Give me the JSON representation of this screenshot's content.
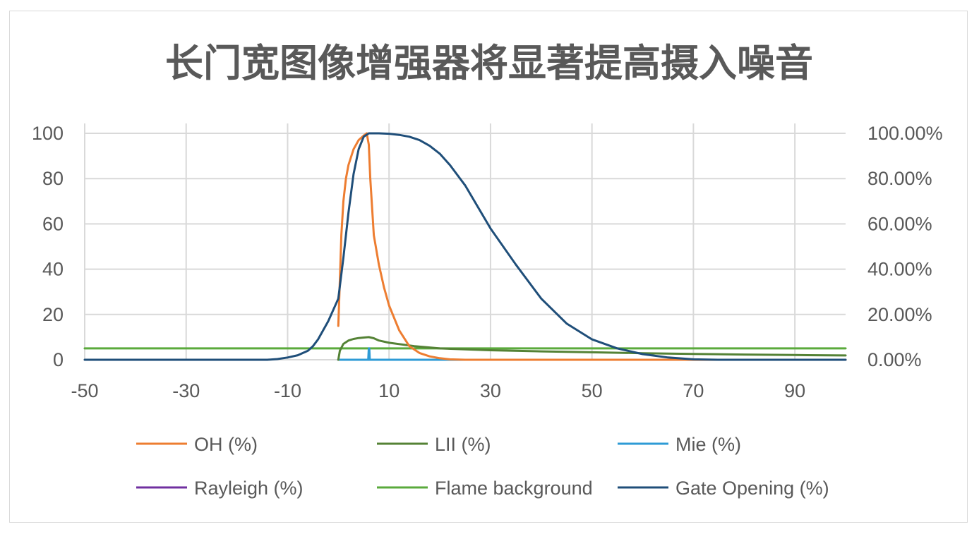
{
  "chart_data": {
    "type": "line",
    "title": "长门宽图像增强器将显著提高摄入噪音",
    "xlim": [
      -50,
      100
    ],
    "x_ticks": [
      "-50",
      "-30",
      "-10",
      "10",
      "30",
      "50",
      "70",
      "90"
    ],
    "x_tick_values": [
      -50,
      -30,
      -10,
      10,
      30,
      50,
      70,
      90
    ],
    "ylim": [
      0,
      100
    ],
    "y_ticks": [
      "0",
      "20",
      "40",
      "60",
      "80",
      "100"
    ],
    "y_tick_values": [
      0,
      20,
      40,
      60,
      80,
      100
    ],
    "y2_ticks": [
      "0.00%",
      "20.00%",
      "40.00%",
      "60.00%",
      "80.00%",
      "100.00%"
    ],
    "grid": true,
    "legend_position": "bottom",
    "series": [
      {
        "name": "OH (%)",
        "color": "#ED7D31",
        "x": [
          0,
          0.3,
          0.6,
          1,
          1.5,
          2,
          3,
          4,
          5,
          5.6,
          6,
          6.3,
          7,
          8,
          9,
          10,
          12,
          14,
          16,
          18,
          20,
          22,
          25,
          30,
          100
        ],
        "y": [
          15,
          35,
          55,
          70,
          80,
          86,
          93,
          97,
          99,
          100,
          95,
          80,
          55,
          42,
          32,
          24,
          13,
          6,
          3,
          1.5,
          0.7,
          0.2,
          0,
          0,
          0
        ]
      },
      {
        "name": "LII (%)",
        "color": "#548235",
        "x": [
          0,
          0.3,
          1,
          2,
          3,
          4,
          5,
          6,
          7,
          8,
          10,
          15,
          20,
          30,
          40,
          50,
          60,
          70,
          80,
          90,
          100
        ],
        "y": [
          0,
          4,
          7,
          8.5,
          9.2,
          9.6,
          9.8,
          10,
          9.5,
          8.5,
          7.5,
          6,
          5,
          4.2,
          3.7,
          3.3,
          2.9,
          2.6,
          2.3,
          2.1,
          1.9
        ]
      },
      {
        "name": "Mie (%)",
        "color": "#2E9BD6",
        "x": [
          0,
          5.9,
          6.0,
          6.1,
          6.2,
          100
        ],
        "y": [
          0,
          0,
          5,
          5,
          0,
          0
        ]
      },
      {
        "name": "Rayleigh (%)",
        "color": "#7030A0",
        "x": [
          0,
          100
        ],
        "y": [
          0,
          0
        ]
      },
      {
        "name": "Flame background",
        "color": "#5AAA3C",
        "x": [
          -50,
          100
        ],
        "y": [
          5,
          5
        ]
      },
      {
        "name": "Gate Opening (%)",
        "color": "#1F4E79",
        "x": [
          -50,
          -14,
          -12,
          -10,
          -8,
          -6,
          -5,
          -4,
          -2,
          0,
          1,
          2,
          3,
          4,
          5,
          6,
          8,
          10,
          12,
          14,
          16,
          18,
          20,
          22,
          25,
          30,
          35,
          40,
          45,
          50,
          55,
          60,
          65,
          70,
          75,
          80,
          100
        ],
        "y": [
          0,
          0,
          0.3,
          1,
          2,
          4,
          6,
          9,
          17,
          27,
          45,
          65,
          82,
          93,
          98.5,
          100,
          100,
          99.8,
          99.3,
          98.5,
          97,
          94.5,
          91,
          86,
          77,
          58,
          42,
          27,
          16,
          9,
          5,
          2.5,
          1,
          0.2,
          0,
          0,
          0
        ]
      }
    ]
  }
}
